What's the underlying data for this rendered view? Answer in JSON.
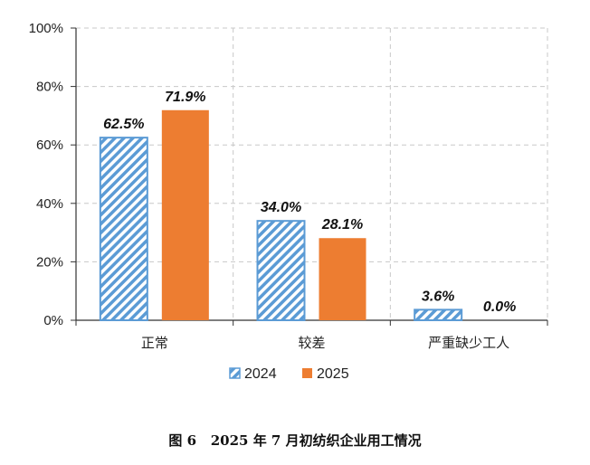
{
  "chart_data": {
    "type": "bar",
    "categories": [
      "正常",
      "较差",
      "严重缺少工人"
    ],
    "series": [
      {
        "name": "2024",
        "values": [
          62.5,
          34.0,
          3.6
        ],
        "labels": [
          "62.5%",
          "34.0%",
          "3.6%"
        ],
        "color": "#5b9bd5",
        "pattern": "hatched"
      },
      {
        "name": "2025",
        "values": [
          71.9,
          28.1,
          0.0
        ],
        "labels": [
          "71.9%",
          "28.1%",
          "0.0%"
        ],
        "color": "#ed7d31",
        "pattern": "solid"
      }
    ],
    "ylim": [
      0,
      100
    ],
    "y_ticks": [
      0,
      20,
      40,
      60,
      80,
      100
    ],
    "y_tick_labels": [
      "0%",
      "20%",
      "40%",
      "60%",
      "80%",
      "100%"
    ],
    "grid": "dashed",
    "legend_position": "bottom",
    "title": ""
  },
  "caption": "图 6   2025 年 7 月初纺织企业用工情况"
}
